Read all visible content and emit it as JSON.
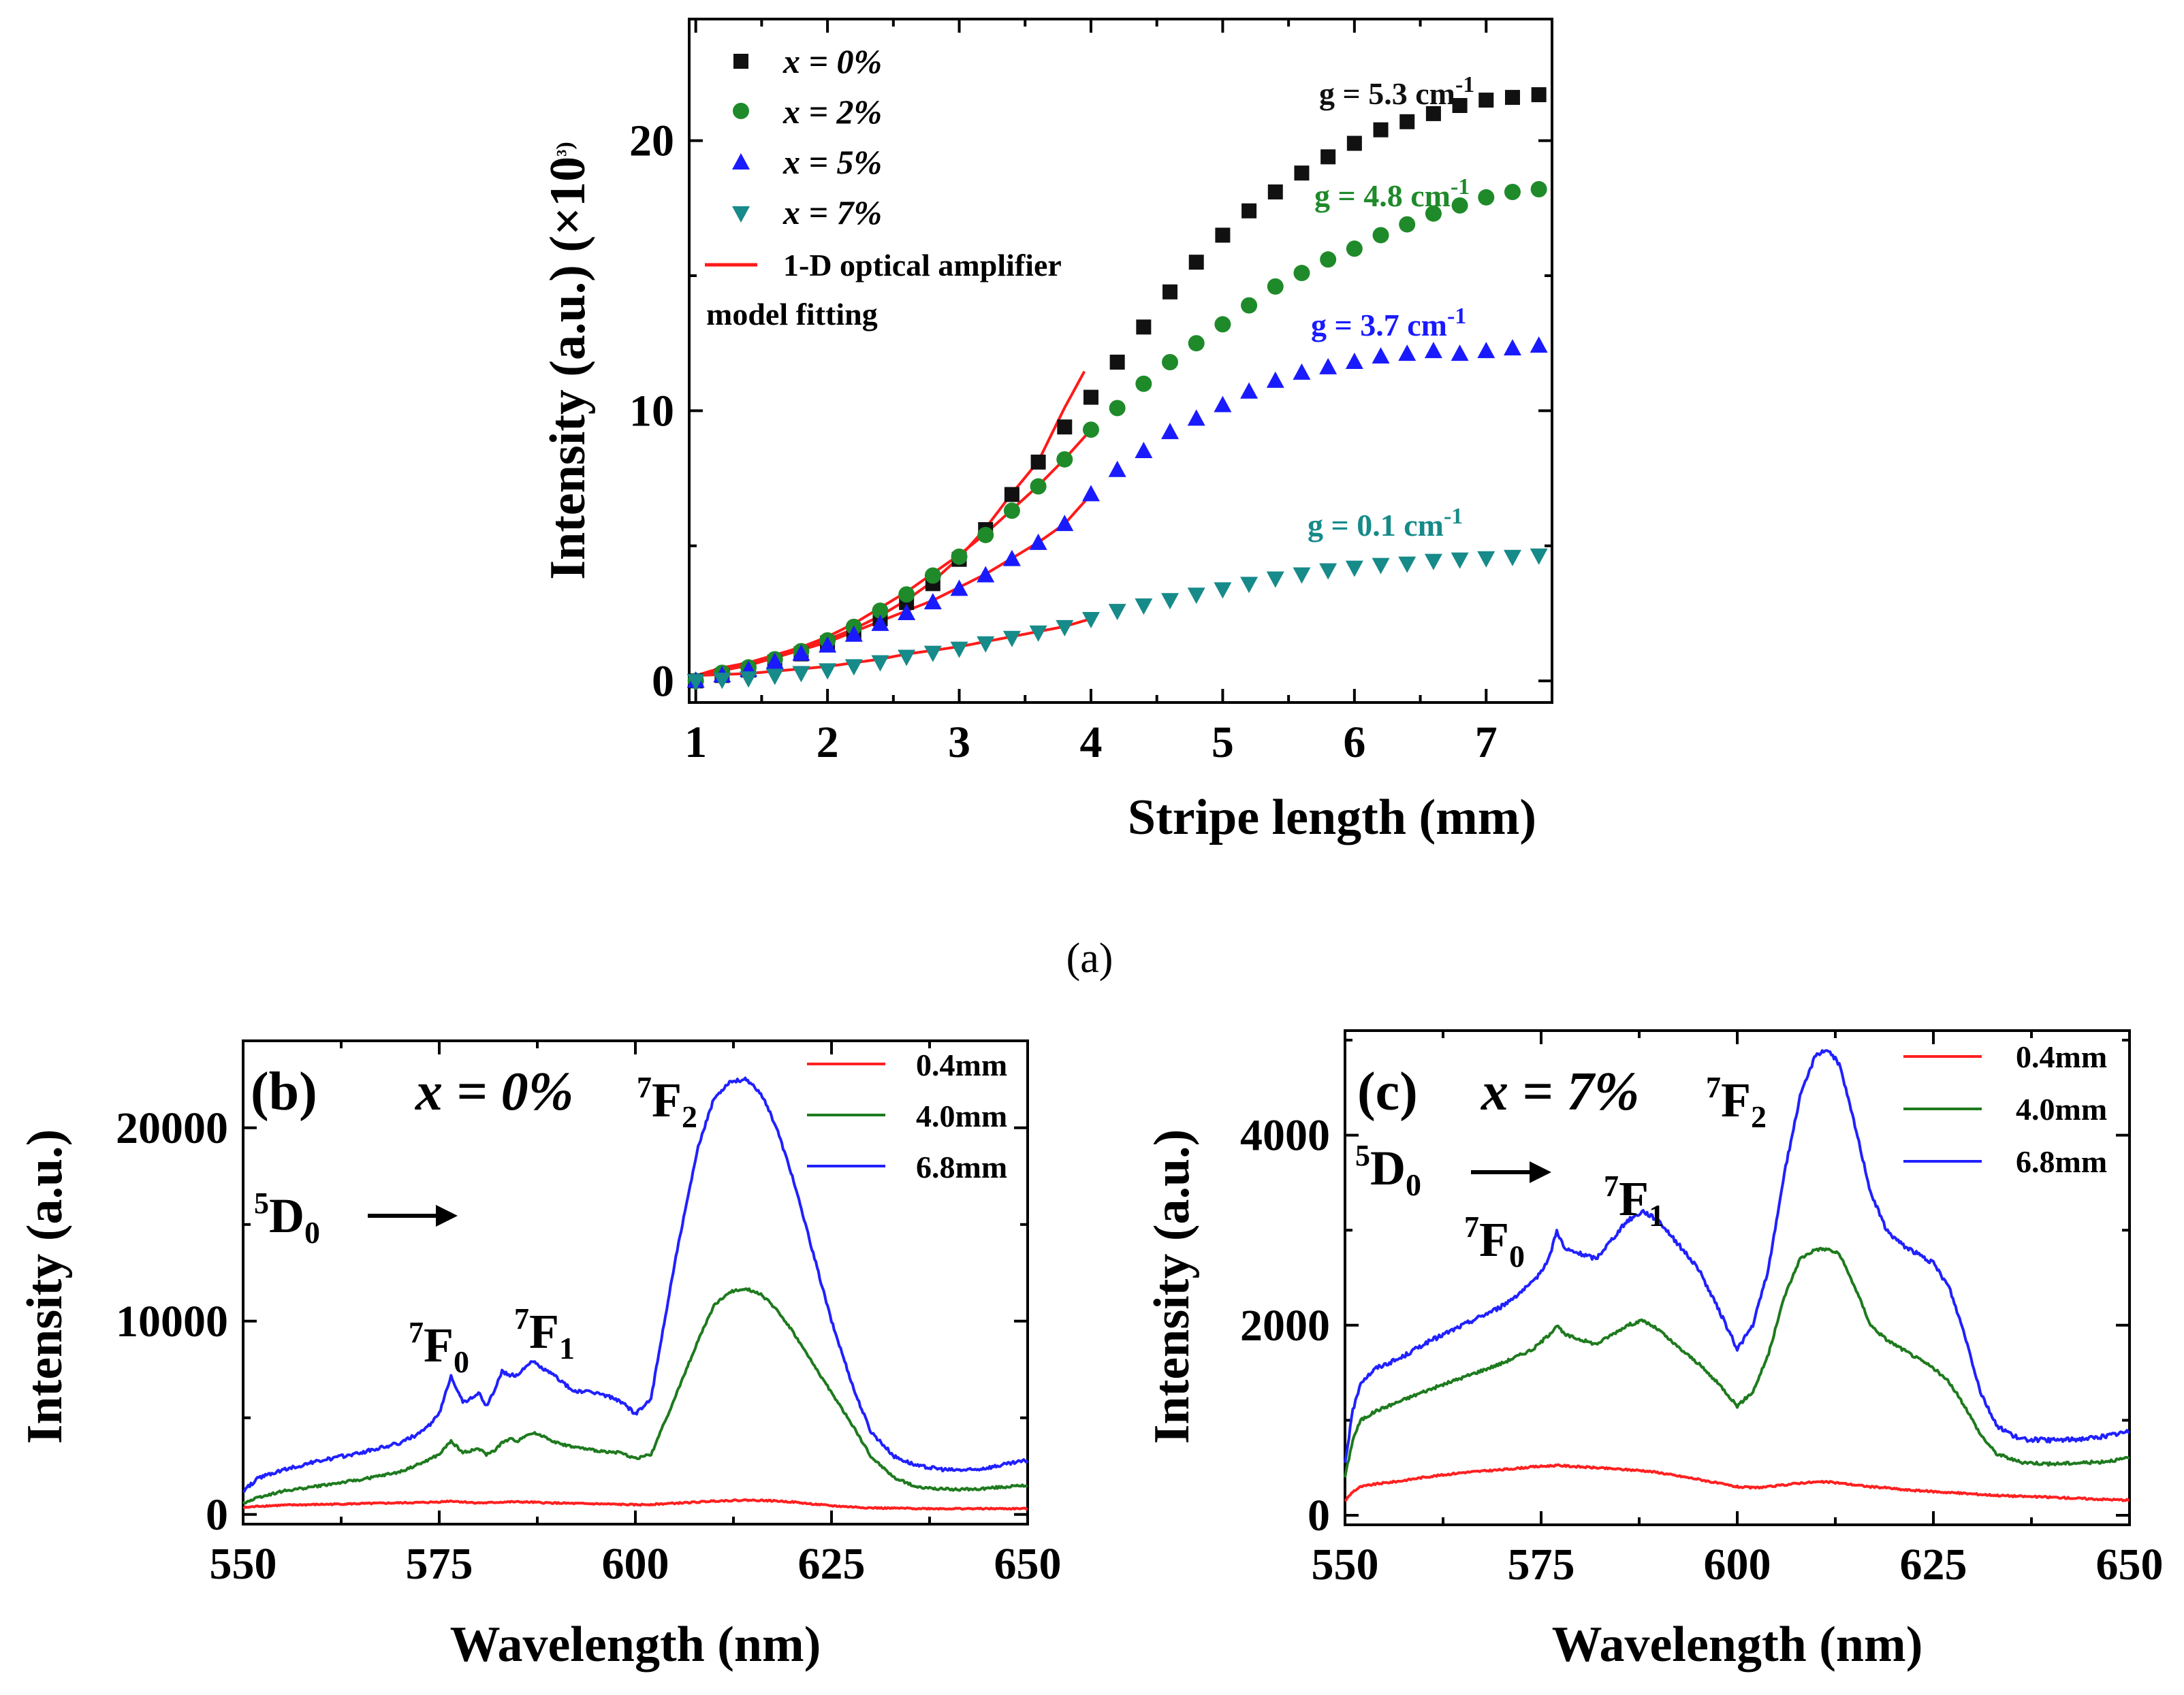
{
  "figure_caption": "(a)",
  "colors": {
    "black": "#111111",
    "green": "#1f8a2a",
    "blue": "#1a1aff",
    "teal": "#178a8a",
    "red": "#ff1a1a",
    "spec_red": "#ff2020",
    "spec_green": "#1e7a1e",
    "spec_blue": "#2020ff"
  },
  "chart_data": [
    {
      "panel": "a",
      "type": "scatter",
      "xlabel": "Stripe length (mm)",
      "ylabel": "Intensity (a.u.) (×10³)",
      "xlim": [
        0.95,
        7.5
      ],
      "ylim": [
        -0.8,
        24.5
      ],
      "xticks": [
        "1",
        "2",
        "3",
        "4",
        "5",
        "6",
        "7"
      ],
      "yticks": [
        "0",
        "10",
        "20"
      ],
      "x": [
        1.0,
        1.2,
        1.4,
        1.6,
        1.8,
        2.0,
        2.2,
        2.4,
        2.6,
        2.8,
        3.0,
        3.2,
        3.4,
        3.6,
        3.8,
        4.0,
        4.2,
        4.4,
        4.6,
        4.8,
        5.0,
        5.2,
        5.4,
        5.6,
        5.8,
        6.0,
        6.2,
        6.4,
        6.6,
        6.8,
        7.0,
        7.2,
        7.4
      ],
      "series": [
        {
          "name": "x = 0%",
          "color": "#111111",
          "marker": "square",
          "gain_label": "g = 5.3 cm-1",
          "values": [
            0.0,
            0.2,
            0.4,
            0.7,
            1.0,
            1.4,
            1.8,
            2.3,
            2.9,
            3.6,
            4.5,
            5.6,
            6.9,
            8.1,
            9.4,
            10.5,
            11.8,
            13.1,
            14.4,
            15.5,
            16.5,
            17.4,
            18.1,
            18.8,
            19.4,
            19.9,
            20.4,
            20.7,
            21.0,
            21.3,
            21.5,
            21.6,
            21.7
          ]
        },
        {
          "name": "x = 2%",
          "color": "#1f8a2a",
          "marker": "circle",
          "gain_label": "g = 4.8 cm-1",
          "values": [
            0.0,
            0.3,
            0.5,
            0.8,
            1.1,
            1.5,
            2.0,
            2.6,
            3.2,
            3.9,
            4.6,
            5.4,
            6.3,
            7.2,
            8.2,
            9.3,
            10.1,
            11.0,
            11.8,
            12.5,
            13.2,
            13.9,
            14.6,
            15.1,
            15.6,
            16.0,
            16.5,
            16.9,
            17.3,
            17.6,
            17.9,
            18.1,
            18.2
          ]
        },
        {
          "name": "x = 5%",
          "color": "#1a1aff",
          "marker": "triangle-up",
          "gain_label": "g = 3.7 cm-1",
          "values": [
            0.0,
            0.2,
            0.4,
            0.7,
            1.0,
            1.3,
            1.7,
            2.1,
            2.5,
            2.9,
            3.4,
            3.9,
            4.5,
            5.1,
            5.8,
            6.9,
            7.8,
            8.5,
            9.2,
            9.7,
            10.2,
            10.7,
            11.1,
            11.4,
            11.6,
            11.8,
            12.0,
            12.1,
            12.2,
            12.1,
            12.2,
            12.3,
            12.4
          ]
        },
        {
          "name": "x = 7%",
          "color": "#178a8a",
          "marker": "triangle-down",
          "gain_label": "g = 0.1 cm-1",
          "values": [
            0.0,
            0.05,
            0.1,
            0.2,
            0.3,
            0.4,
            0.55,
            0.7,
            0.9,
            1.05,
            1.2,
            1.4,
            1.6,
            1.8,
            2.0,
            2.3,
            2.6,
            2.8,
            3.0,
            3.2,
            3.4,
            3.6,
            3.8,
            3.95,
            4.1,
            4.2,
            4.3,
            4.35,
            4.45,
            4.5,
            4.55,
            4.6,
            4.65
          ]
        }
      ],
      "fit_label_line1": "1-D optical amplifier",
      "fit_label_line2": "model fitting",
      "fit_color": "#ff1a1a"
    },
    {
      "panel": "b",
      "type": "line",
      "panel_label": "(b)",
      "composition": "x = 0%",
      "xlabel": "Wavelength (nm)",
      "ylabel": "Intensity (a.u.)",
      "xlim": [
        550,
        650
      ],
      "ylim": [
        -500,
        24500
      ],
      "xticks": [
        "550",
        "575",
        "600",
        "625",
        "650"
      ],
      "yticks": [
        "0",
        "10000",
        "20000"
      ],
      "x": [
        550,
        552,
        555,
        560,
        565,
        570,
        573,
        575,
        576.5,
        578,
        579,
        580,
        581,
        582,
        583,
        584,
        585,
        586,
        587,
        588,
        590,
        592,
        595,
        598,
        600,
        602,
        605,
        608,
        610,
        612,
        614,
        616,
        618,
        620,
        622,
        625,
        628,
        630,
        633,
        636,
        640,
        643,
        646,
        650
      ],
      "series": [
        {
          "name": "0.4mm",
          "color": "#ff2020",
          "values": [
            350,
            430,
            480,
            520,
            560,
            600,
            620,
            650,
            700,
            650,
            620,
            600,
            600,
            620,
            640,
            650,
            650,
            640,
            630,
            610,
            590,
            570,
            550,
            520,
            500,
            520,
            580,
            640,
            700,
            720,
            740,
            730,
            700,
            650,
            560,
            450,
            380,
            340,
            320,
            310,
            300,
            300,
            300,
            300
          ]
        },
        {
          "name": "4.0mm",
          "color": "#1e7a1e",
          "values": [
            600,
            900,
            1200,
            1500,
            1800,
            2200,
            2700,
            3100,
            3800,
            3200,
            3300,
            3400,
            3100,
            3300,
            3700,
            3900,
            3800,
            4100,
            4200,
            4100,
            3700,
            3500,
            3300,
            3200,
            2900,
            3100,
            6000,
            9000,
            10800,
            11500,
            11700,
            11400,
            10600,
            9500,
            8200,
            6300,
            4400,
            3000,
            1900,
            1400,
            1300,
            1300,
            1400,
            1500
          ]
        },
        {
          "name": "6.8mm",
          "color": "#2020ff",
          "values": [
            1200,
            1900,
            2300,
            2800,
            3200,
            3700,
            4300,
            5200,
            7200,
            5800,
            6000,
            6300,
            5600,
            6400,
            7400,
            7200,
            7200,
            7700,
            7900,
            7600,
            7100,
            6400,
            6300,
            5900,
            5200,
            6000,
            13000,
            19000,
            21500,
            22400,
            22500,
            21800,
            20000,
            17500,
            14500,
            10000,
            6300,
            4300,
            3000,
            2500,
            2300,
            2300,
            2500,
            2800
          ]
        }
      ],
      "annotations": [
        {
          "base": "7",
          "main": "F",
          "sub": "2"
        },
        {
          "base": "5",
          "main": "D",
          "sub": "0"
        },
        {
          "base": "7",
          "main": "F",
          "sub": "0"
        },
        {
          "base": "7",
          "main": "F",
          "sub": "1"
        }
      ]
    },
    {
      "panel": "c",
      "type": "line",
      "panel_label": "(c)",
      "composition": "x = 7%",
      "xlabel": "Wavelength (nm)",
      "ylabel": "Intensity (a.u.)",
      "xlim": [
        550,
        650
      ],
      "ylim": [
        -100,
        5100
      ],
      "xticks": [
        "550",
        "575",
        "600",
        "625",
        "650"
      ],
      "yticks": [
        "0",
        "2000",
        "4000"
      ],
      "x": [
        550,
        551,
        552,
        554,
        557,
        560,
        565,
        570,
        574,
        576,
        577,
        578,
        580,
        582,
        584,
        586,
        588,
        590,
        592,
        595,
        598,
        600,
        602,
        604,
        606,
        608,
        610,
        611.5,
        613,
        615,
        617,
        619,
        621,
        623,
        625,
        627,
        629,
        631,
        633,
        636,
        640,
        643,
        646,
        650
      ],
      "series": [
        {
          "name": "0.4mm",
          "color": "#ff2020",
          "values": [
            150,
            250,
            300,
            330,
            360,
            400,
            450,
            480,
            510,
            520,
            525,
            520,
            510,
            500,
            490,
            480,
            470,
            450,
            420,
            380,
            330,
            300,
            290,
            300,
            320,
            340,
            350,
            350,
            340,
            320,
            300,
            290,
            270,
            260,
            250,
            240,
            230,
            220,
            210,
            200,
            190,
            180,
            170,
            160
          ]
        },
        {
          "name": "4.0mm",
          "color": "#1e7a1e",
          "values": [
            400,
            800,
            1000,
            1100,
            1200,
            1300,
            1450,
            1600,
            1750,
            1900,
            2000,
            1900,
            1850,
            1800,
            1900,
            2000,
            2050,
            1950,
            1800,
            1600,
            1350,
            1150,
            1300,
            1700,
            2300,
            2700,
            2800,
            2800,
            2750,
            2400,
            2000,
            1850,
            1750,
            1650,
            1550,
            1400,
            1150,
            850,
            650,
            560,
            540,
            550,
            560,
            600
          ]
        },
        {
          "name": "6.8mm",
          "color": "#2020ff",
          "values": [
            550,
            1100,
            1400,
            1550,
            1650,
            1800,
            2000,
            2200,
            2450,
            2700,
            3000,
            2800,
            2750,
            2700,
            2900,
            3100,
            3200,
            3100,
            2900,
            2600,
            2100,
            1750,
            2000,
            2600,
            3600,
            4400,
            4850,
            4900,
            4750,
            4100,
            3400,
            3000,
            2850,
            2750,
            2650,
            2400,
            1900,
            1300,
            950,
            800,
            790,
            800,
            820,
            880
          ]
        }
      ],
      "annotations": [
        {
          "base": "7",
          "main": "F",
          "sub": "2"
        },
        {
          "base": "5",
          "main": "D",
          "sub": "0"
        },
        {
          "base": "7",
          "main": "F",
          "sub": "1"
        },
        {
          "base": "7",
          "main": "F",
          "sub": "0"
        }
      ]
    }
  ]
}
